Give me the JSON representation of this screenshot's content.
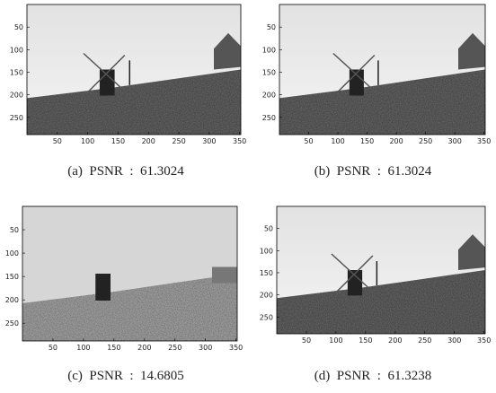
{
  "panels": [
    {
      "caption": "(a)  PSNR  :  61.3024",
      "xlim": [
        0,
        352
      ],
      "ylim": [
        0,
        288
      ],
      "xticks": [
        50,
        100,
        150,
        200,
        250,
        300,
        350
      ],
      "yticks": [
        50,
        100,
        150,
        200,
        250
      ]
    },
    {
      "caption": "(b)  PSNR  :  61.3024",
      "xlim": [
        0,
        352
      ],
      "ylim": [
        0,
        288
      ],
      "xticks": [
        50,
        100,
        150,
        200,
        250,
        300,
        350
      ],
      "yticks": [
        50,
        100,
        150,
        200,
        250
      ]
    },
    {
      "caption": "(c)  PSNR  :  14.6805",
      "xlim": [
        0,
        352
      ],
      "ylim": [
        0,
        288
      ],
      "xticks": [
        50,
        100,
        150,
        200,
        250,
        300,
        350
      ],
      "yticks": [
        50,
        100,
        150,
        200,
        250
      ]
    },
    {
      "caption": "(d)  PSNR  :  61.3238",
      "xlim": [
        0,
        352
      ],
      "ylim": [
        0,
        288
      ],
      "xticks": [
        50,
        100,
        150,
        200,
        250,
        300,
        350
      ],
      "yticks": [
        50,
        100,
        150,
        200,
        250
      ]
    }
  ]
}
